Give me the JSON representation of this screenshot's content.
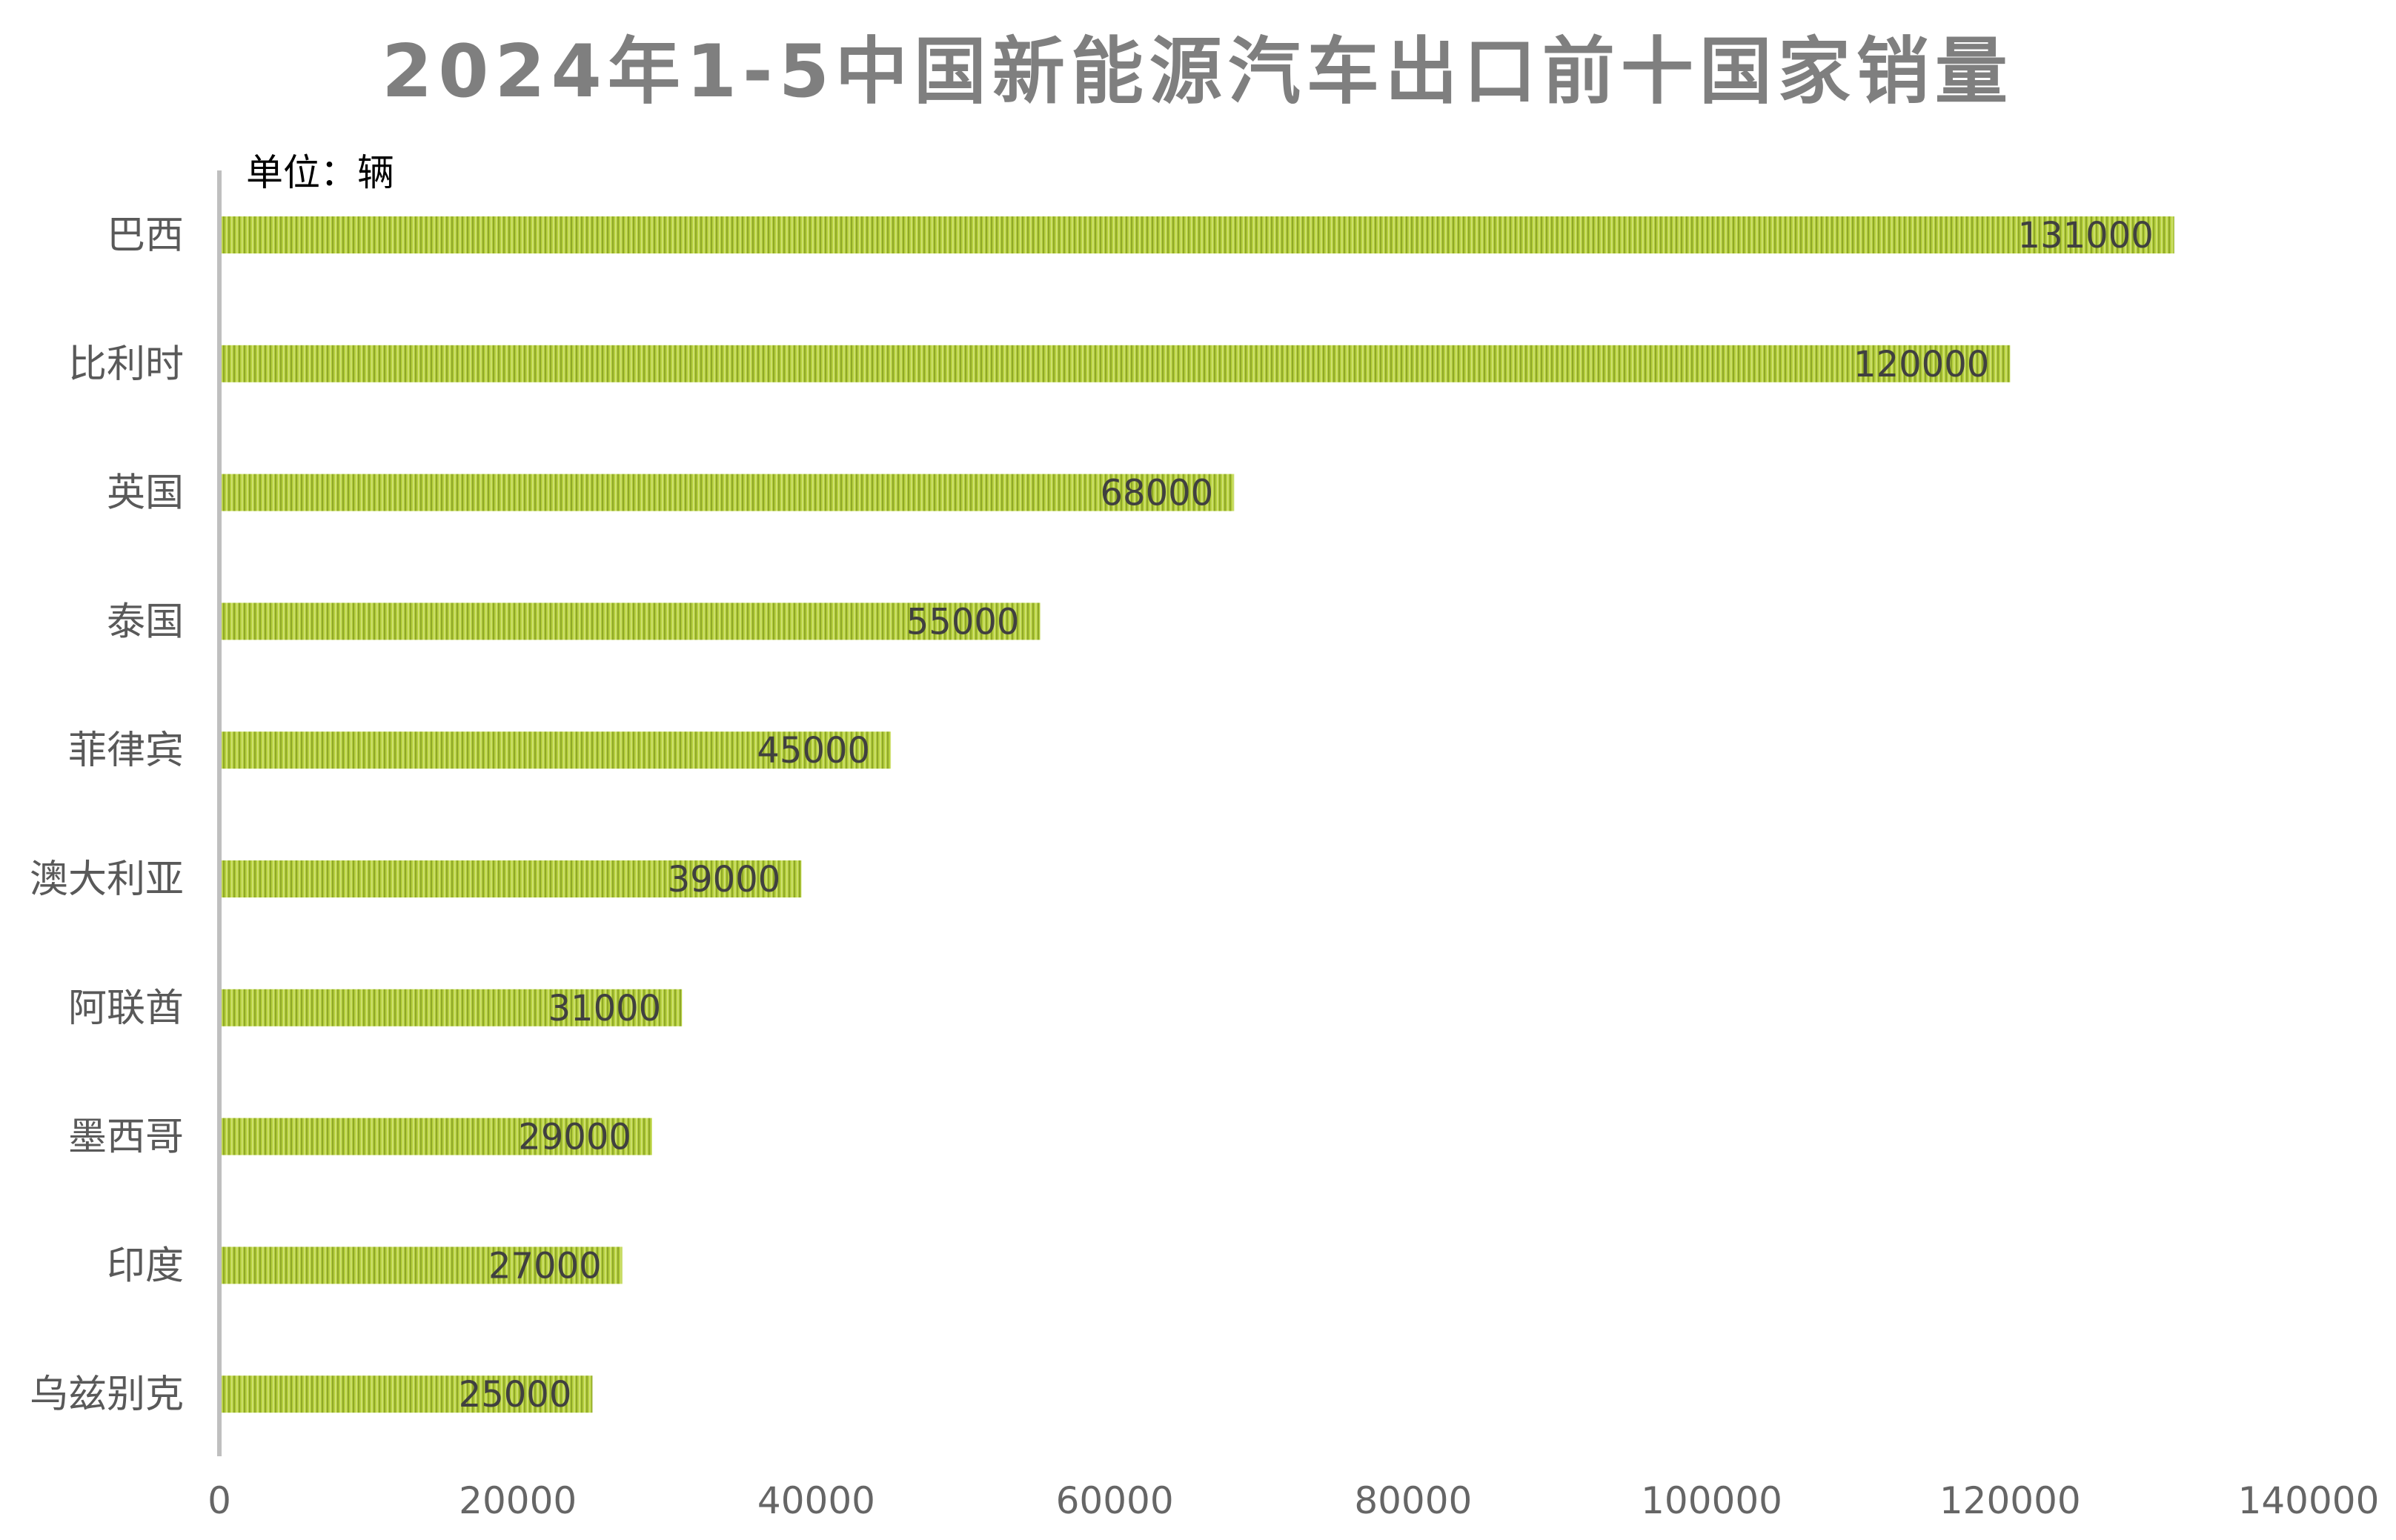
{
  "chart_data": {
    "type": "bar",
    "orientation": "horizontal",
    "title": "2024年1-5中国新能源汽车出口前十国家销量",
    "unit_label": "单位：辆",
    "categories": [
      "巴西",
      "比利时",
      "英国",
      "泰国",
      "菲律宾",
      "澳大利亚",
      "阿联酋",
      "墨西哥",
      "印度",
      "乌兹别克"
    ],
    "values": [
      131000,
      120000,
      68000,
      55000,
      45000,
      39000,
      31000,
      29000,
      27000,
      25000
    ],
    "xlim": [
      0,
      140000
    ],
    "xticks": [
      0,
      20000,
      40000,
      60000,
      80000,
      100000,
      120000,
      140000
    ],
    "grid": false,
    "legend": "none",
    "data_labels": true,
    "colors": {
      "bar_fill": "#b5cf3d",
      "bar_stripe": "#8fa828",
      "bar_highlight": "#d4e47a",
      "title": "#7f7f7f",
      "axis": "#bfbfbf",
      "tick_label": "#666666",
      "category_label": "#595959",
      "data_label": "#404040",
      "unit_label": "#000000"
    }
  }
}
